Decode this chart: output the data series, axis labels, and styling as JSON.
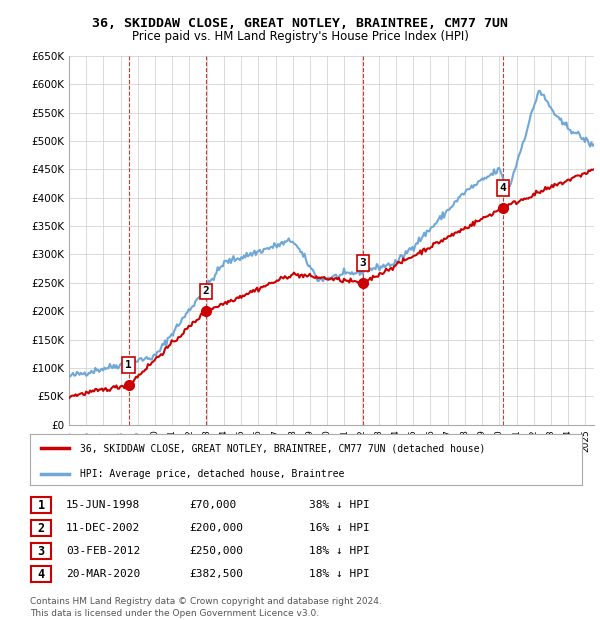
{
  "title": "36, SKIDDAW CLOSE, GREAT NOTLEY, BRAINTREE, CM77 7UN",
  "subtitle": "Price paid vs. HM Land Registry's House Price Index (HPI)",
  "ylim": [
    0,
    650000
  ],
  "yticks": [
    0,
    50000,
    100000,
    150000,
    200000,
    250000,
    300000,
    350000,
    400000,
    450000,
    500000,
    550000,
    600000,
    650000
  ],
  "ytick_labels": [
    "£0",
    "£50K",
    "£100K",
    "£150K",
    "£200K",
    "£250K",
    "£300K",
    "£350K",
    "£400K",
    "£450K",
    "£500K",
    "£550K",
    "£600K",
    "£650K"
  ],
  "hpi_color": "#6fa8d8",
  "sale_color": "#cc0000",
  "vline_color": "#cc0000",
  "grid_color": "#cccccc",
  "sale_dates_num": [
    1998.46,
    2002.94,
    2012.09,
    2020.22
  ],
  "sale_prices": [
    70000,
    200000,
    250000,
    382500
  ],
  "sale_labels": [
    "1",
    "2",
    "3",
    "4"
  ],
  "legend_property": "36, SKIDDAW CLOSE, GREAT NOTLEY, BRAINTREE, CM77 7UN (detached house)",
  "legend_hpi": "HPI: Average price, detached house, Braintree",
  "table_rows": [
    [
      "1",
      "15-JUN-1998",
      "£70,000",
      "38% ↓ HPI"
    ],
    [
      "2",
      "11-DEC-2002",
      "£200,000",
      "16% ↓ HPI"
    ],
    [
      "3",
      "03-FEB-2012",
      "£250,000",
      "18% ↓ HPI"
    ],
    [
      "4",
      "20-MAR-2020",
      "£382,500",
      "18% ↓ HPI"
    ]
  ],
  "footer": "Contains HM Land Registry data © Crown copyright and database right 2024.\nThis data is licensed under the Open Government Licence v3.0.",
  "xlim_start": 1995.0,
  "xlim_end": 2025.5
}
